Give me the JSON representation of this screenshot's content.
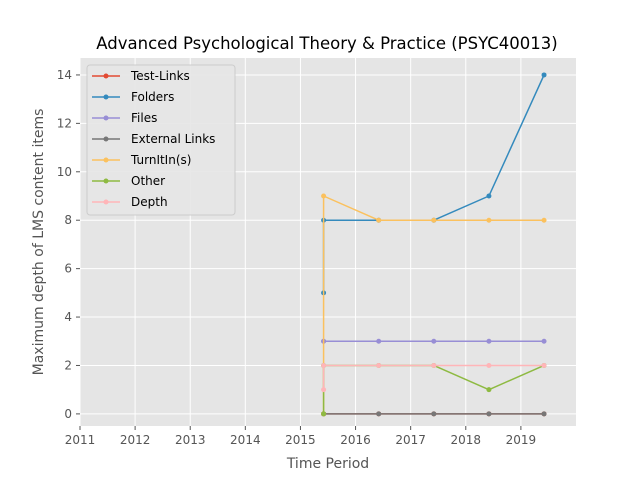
{
  "chart_data": {
    "type": "line",
    "title": "Advanced Psychological Theory & Practice (PSYC40013)",
    "xlabel": "Time Period",
    "ylabel": "Maximum depth of LMS content items",
    "xlim": [
      2011,
      2020
    ],
    "ylim": [
      -0.5,
      14.7
    ],
    "x_ticks": [
      2011,
      2012,
      2013,
      2014,
      2015,
      2016,
      2017,
      2018,
      2019
    ],
    "y_ticks": [
      0,
      2,
      4,
      6,
      8,
      10,
      12,
      14
    ],
    "grid": true,
    "background": "#e5e5e5",
    "legend_position": "upper-left",
    "series": [
      {
        "name": "Test-Links",
        "color": "#E24A33",
        "points": [
          [
            2015.42,
            0
          ],
          [
            2015.42,
            0
          ],
          [
            2016.42,
            0
          ],
          [
            2017.42,
            0
          ],
          [
            2018.42,
            0
          ],
          [
            2019.42,
            0
          ]
        ]
      },
      {
        "name": "Folders",
        "color": "#348ABD",
        "points": [
          [
            2015.42,
            5
          ],
          [
            2015.42,
            8
          ],
          [
            2016.42,
            8
          ],
          [
            2017.42,
            8
          ],
          [
            2018.42,
            9
          ],
          [
            2019.42,
            14
          ]
        ]
      },
      {
        "name": "Files",
        "color": "#988ED5",
        "points": [
          [
            2015.42,
            3
          ],
          [
            2015.42,
            3
          ],
          [
            2016.42,
            3
          ],
          [
            2017.42,
            3
          ],
          [
            2018.42,
            3
          ],
          [
            2019.42,
            3
          ]
        ]
      },
      {
        "name": "External Links",
        "color": "#777777",
        "points": [
          [
            2015.42,
            0
          ],
          [
            2015.42,
            0
          ],
          [
            2016.42,
            0
          ],
          [
            2017.42,
            0
          ],
          [
            2018.42,
            0
          ],
          [
            2019.42,
            0
          ]
        ]
      },
      {
        "name": "TurnItIn(s)",
        "color": "#FBC15E",
        "points": [
          [
            2015.42,
            0
          ],
          [
            2015.42,
            9
          ],
          [
            2016.42,
            8
          ],
          [
            2017.42,
            8
          ],
          [
            2018.42,
            8
          ],
          [
            2019.42,
            8
          ]
        ]
      },
      {
        "name": "Other",
        "color": "#8EBA42",
        "points": [
          [
            2015.42,
            0
          ],
          [
            2015.42,
            2
          ],
          [
            2016.42,
            2
          ],
          [
            2017.42,
            2
          ],
          [
            2018.42,
            1
          ],
          [
            2019.42,
            2
          ]
        ]
      },
      {
        "name": "Depth",
        "color": "#FFB5B8",
        "points": [
          [
            2015.42,
            1
          ],
          [
            2015.42,
            2
          ],
          [
            2016.42,
            2
          ],
          [
            2017.42,
            2
          ],
          [
            2018.42,
            2
          ],
          [
            2019.42,
            2
          ]
        ]
      }
    ]
  }
}
